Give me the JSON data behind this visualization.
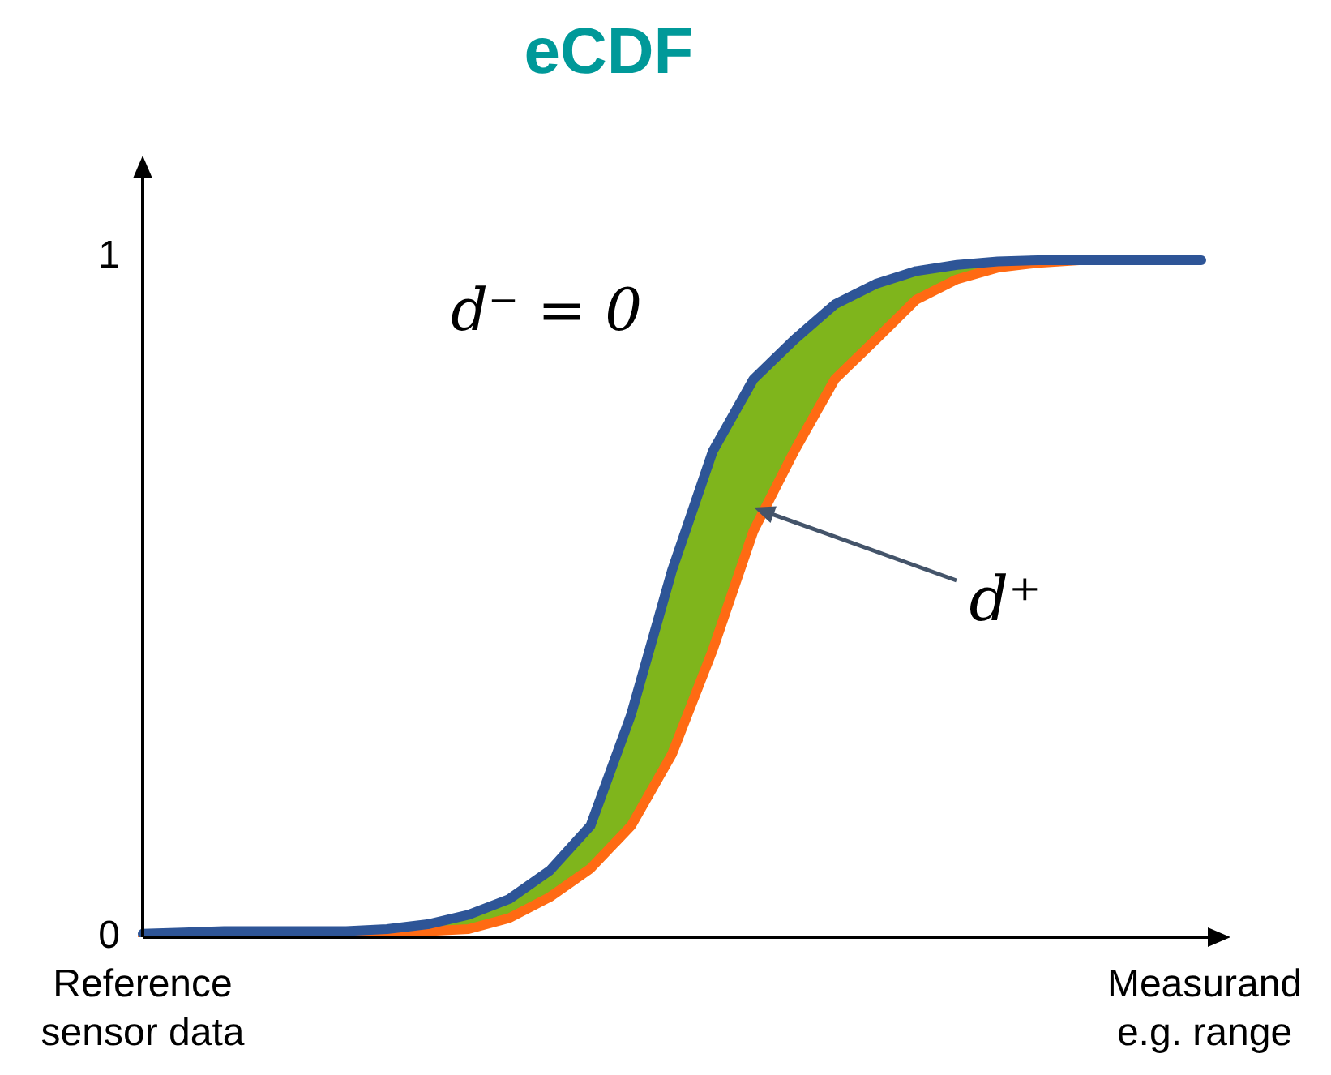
{
  "chart_data": {
    "type": "line",
    "title": "eCDF",
    "xlabel": "Measurand e.g. range",
    "categories": [
      null,
      null,
      null,
      null,
      null,
      null,
      null,
      null,
      null,
      null,
      null,
      null,
      null,
      null,
      null,
      null,
      null,
      null,
      null,
      null,
      null,
      null,
      null,
      null,
      null,
      null,
      null
    ],
    "ylim": [
      0,
      1.12
    ],
    "yticks": [
      0,
      1
    ],
    "tick_labels": "y",
    "grid": false,
    "legend": false,
    "marker": "none",
    "line_style": "solid",
    "series": [
      {
        "color": "#ff6a13",
        "values": [
          0,
          0,
          0,
          0,
          0,
          0,
          0.005,
          0.009,
          0.012,
          0.028,
          0.059,
          0.101,
          0.164,
          0.269,
          0.422,
          0.597,
          0.714,
          0.82,
          0.878,
          0.937,
          0.967,
          0.984,
          0.991,
          0.995,
          null,
          null,
          null
        ]
      },
      {
        "color": "#2e5597",
        "values": [
          0.005,
          0.007,
          0.009,
          0.009,
          0.009,
          0.009,
          0.012,
          0.019,
          0.033,
          0.056,
          0.098,
          0.164,
          0.328,
          0.539,
          0.714,
          0.82,
          0.878,
          0.93,
          0.96,
          0.979,
          0.988,
          0.993,
          0.995,
          0.995,
          0.995,
          0.995,
          0.995
        ],
        "lower": [
          0,
          0,
          0,
          0,
          0,
          0,
          0.005,
          0.009,
          0.012,
          0.028,
          0.059,
          0.101,
          0.164,
          0.269,
          0.422,
          0.597,
          0.714,
          0.82,
          0.878,
          0.937,
          0.967,
          0.984,
          0.991,
          0.995,
          0.995,
          0.995,
          0.995
        ],
        "upper": [
          0.005,
          0.007,
          0.009,
          0.009,
          0.009,
          0.009,
          0.012,
          0.019,
          0.033,
          0.056,
          0.098,
          0.164,
          0.328,
          0.539,
          0.714,
          0.82,
          0.878,
          0.93,
          0.96,
          0.979,
          0.988,
          0.993,
          0.995,
          0.995,
          0.995,
          0.995,
          0.995
        ]
      }
    ],
    "annotations": [
      "d⁻ = 0",
      "d⁺",
      "Reference sensor data"
    ]
  }
}
